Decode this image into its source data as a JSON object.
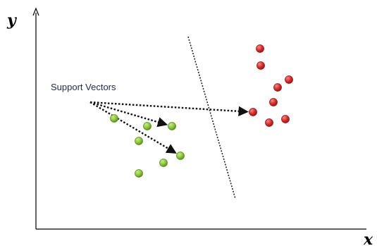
{
  "axes": {
    "y_label": "y",
    "x_label": "x"
  },
  "annotation": {
    "label": "Support Vectors"
  },
  "colors": {
    "axis": "#000000",
    "class_a": "#8dc63f",
    "class_a_stroke": "#5f8f1e",
    "class_b": "#d42d2d",
    "class_b_stroke": "#9a1717",
    "hyperplane": "#222222",
    "arrow": "#111111",
    "label_text": "#1f2a44"
  },
  "chart_data": {
    "type": "scatter",
    "xlabel": "x",
    "ylabel": "y",
    "series": [
      {
        "points": [
          [
            162,
            168
          ],
          [
            209,
            179
          ],
          [
            244,
            179
          ],
          [
            197,
            200
          ],
          [
            256,
            221
          ],
          [
            232,
            231
          ],
          [
            197,
            246
          ]
        ]
      },
      {
        "points": [
          [
            369,
            69
          ],
          [
            370,
            93
          ],
          [
            410,
            113
          ],
          [
            394,
            124
          ],
          [
            388,
            145
          ],
          [
            359,
            159
          ],
          [
            405,
            169
          ],
          [
            382,
            174
          ]
        ]
      }
    ],
    "decision_boundary": [
      [
        267,
        52
      ],
      [
        334,
        282
      ]
    ],
    "support_vectors": [
      [
        244,
        179
      ],
      [
        256,
        221
      ],
      [
        359,
        159
      ]
    ]
  }
}
